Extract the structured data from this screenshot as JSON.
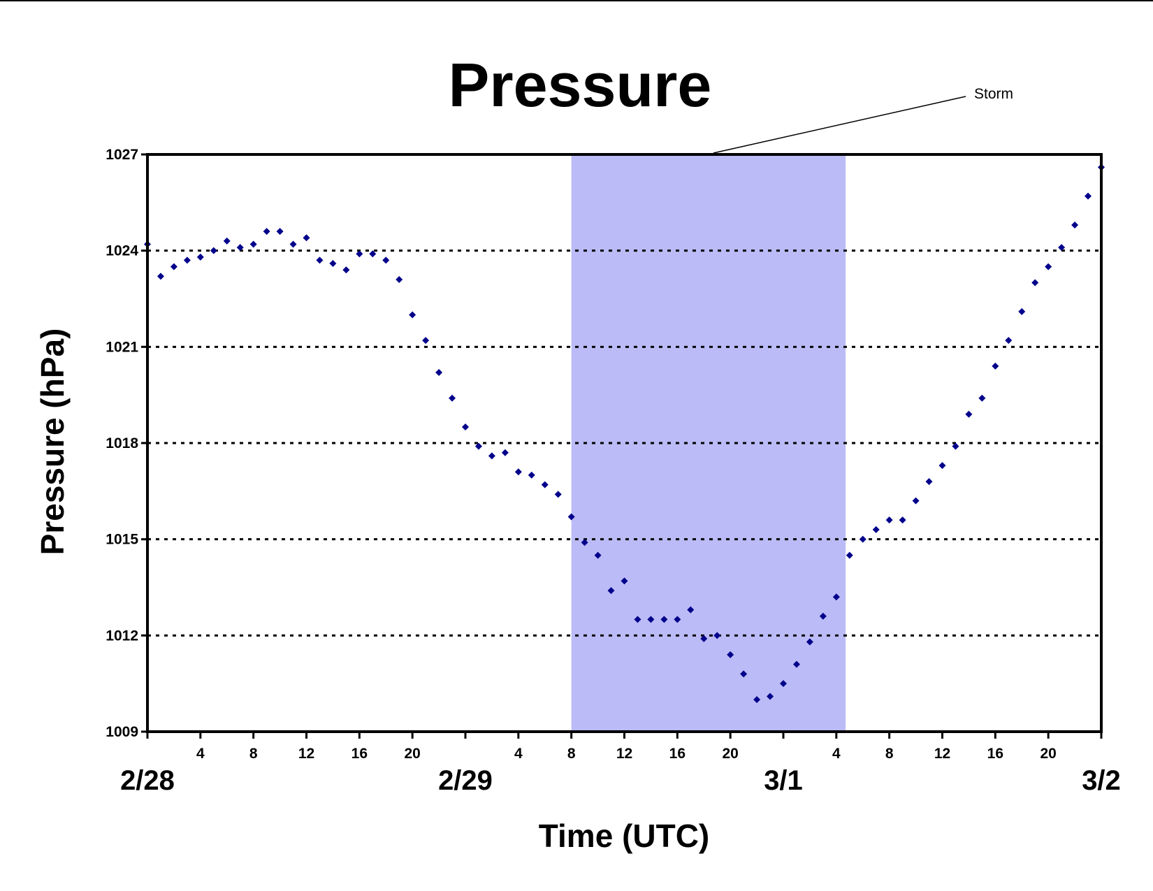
{
  "chart_data": {
    "type": "scatter",
    "title": "Pressure",
    "xlabel": "Time (UTC)",
    "ylabel": "Pressure (hPa)",
    "ylim": [
      1009,
      1027
    ],
    "yticks": [
      1009,
      1012,
      1015,
      1018,
      1021,
      1024,
      1027
    ],
    "xlim_hours": [
      0,
      72
    ],
    "x_unit": "hours after 2/28 00 UTC",
    "hour_tick_labels": [
      {
        "hour": 4,
        "label": "4"
      },
      {
        "hour": 8,
        "label": "8"
      },
      {
        "hour": 12,
        "label": "12"
      },
      {
        "hour": 16,
        "label": "16"
      },
      {
        "hour": 20,
        "label": "20"
      },
      {
        "hour": 28,
        "label": "4"
      },
      {
        "hour": 32,
        "label": "8"
      },
      {
        "hour": 36,
        "label": "12"
      },
      {
        "hour": 40,
        "label": "16"
      },
      {
        "hour": 44,
        "label": "20"
      },
      {
        "hour": 52,
        "label": "4"
      },
      {
        "hour": 56,
        "label": "8"
      },
      {
        "hour": 60,
        "label": "12"
      },
      {
        "hour": 64,
        "label": "16"
      },
      {
        "hour": 68,
        "label": "20"
      }
    ],
    "day_labels": [
      {
        "hour": 0,
        "label": "2/28"
      },
      {
        "hour": 24,
        "label": "2/29"
      },
      {
        "hour": 48,
        "label": "3/1"
      },
      {
        "hour": 72,
        "label": "3/2"
      }
    ],
    "grid": "horizontal dotted",
    "marker_color": "#00008b",
    "shade_color": "#bbbbf7",
    "storm_period_hours": [
      32,
      52.7
    ],
    "annotation": {
      "text": "Storm"
    },
    "x": [
      0,
      1,
      2,
      3,
      4,
      5,
      6,
      7,
      8,
      9,
      10,
      11,
      12,
      13,
      14,
      15,
      16,
      17,
      18,
      19,
      20,
      21,
      22,
      23,
      24,
      25,
      26,
      27,
      28,
      29,
      30,
      31,
      32,
      33,
      34,
      35,
      36,
      37,
      38,
      39,
      40,
      41,
      42,
      43,
      44,
      45,
      46,
      47,
      48,
      49,
      50,
      51,
      52,
      53,
      54,
      55,
      56,
      57,
      58,
      59,
      60,
      61,
      62,
      63,
      64,
      65,
      66,
      67,
      68,
      69,
      70,
      71,
      72
    ],
    "y": [
      1024.2,
      1023.2,
      1023.5,
      1023.7,
      1023.8,
      1024.0,
      1024.3,
      1024.1,
      1024.2,
      1024.6,
      1024.6,
      1024.2,
      1024.4,
      1023.7,
      1023.6,
      1023.4,
      1023.9,
      1023.9,
      1023.7,
      1023.1,
      1022.0,
      1021.2,
      1020.2,
      1019.4,
      1018.5,
      1017.9,
      1017.6,
      1017.7,
      1017.1,
      1017.0,
      1016.7,
      1016.4,
      1015.7,
      1014.9,
      1014.5,
      1013.4,
      1013.7,
      1012.5,
      1012.5,
      1012.5,
      1012.5,
      1012.8,
      1011.9,
      1012.0,
      1011.4,
      1010.8,
      1010.0,
      1010.1,
      1010.5,
      1011.1,
      1011.8,
      1012.6,
      1013.2,
      1014.5,
      1015.0,
      1015.3,
      1015.6,
      1015.6,
      1016.2,
      1016.8,
      1017.3,
      1017.9,
      1018.9,
      1019.4,
      1020.4,
      1021.2,
      1022.1,
      1023.0,
      1023.5,
      1024.1,
      1024.8,
      1025.7,
      1026.6
    ]
  }
}
